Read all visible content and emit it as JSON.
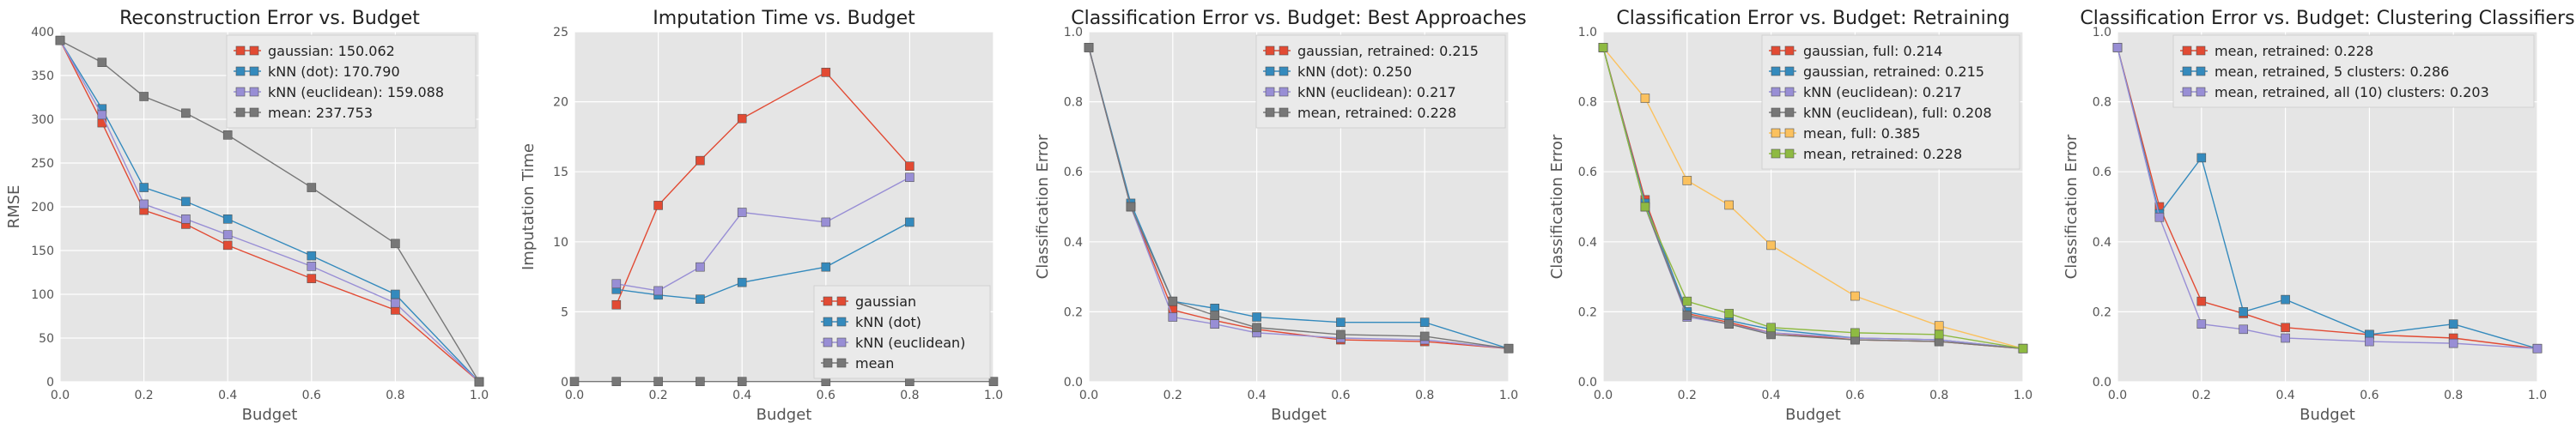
{
  "colors": {
    "background": "#e5e5e5",
    "grid": "#ffffff",
    "legend_bg": "#eaeaea",
    "series": [
      "#e24a33",
      "#348abd",
      "#988ed5",
      "#777777",
      "#fbc15e",
      "#8eba42"
    ]
  },
  "chart_data": [
    {
      "type": "line",
      "title": "Reconstruction Error vs. Budget",
      "xlabel": "Budget",
      "ylabel": "RMSE",
      "xlim": [
        0.0,
        1.0
      ],
      "ylim": [
        0,
        400
      ],
      "xticks": [
        "0.0",
        "0.2",
        "0.4",
        "0.6",
        "0.8",
        "1.0"
      ],
      "yticks": [
        "0",
        "50",
        "100",
        "150",
        "200",
        "250",
        "300",
        "350",
        "400"
      ],
      "legend_position": "top-right",
      "grid": true,
      "series": [
        {
          "name": "gaussian: 150.062",
          "color": "#e24a33",
          "x": [
            0.0,
            0.1,
            0.2,
            0.3,
            0.4,
            0.6,
            0.8,
            1.0
          ],
          "y": [
            390,
            296,
            196,
            180,
            156,
            118,
            82,
            0
          ]
        },
        {
          "name": "kNN (dot): 170.790",
          "color": "#348abd",
          "x": [
            0.0,
            0.1,
            0.2,
            0.3,
            0.4,
            0.6,
            0.8,
            1.0
          ],
          "y": [
            390,
            312,
            222,
            206,
            186,
            144,
            100,
            0
          ]
        },
        {
          "name": "kNN (euclidean): 159.088",
          "color": "#988ed5",
          "x": [
            0.0,
            0.1,
            0.2,
            0.3,
            0.4,
            0.6,
            0.8,
            1.0
          ],
          "y": [
            390,
            305,
            203,
            186,
            168,
            132,
            90,
            0
          ]
        },
        {
          "name": "mean: 237.753",
          "color": "#777777",
          "x": [
            0.0,
            0.1,
            0.2,
            0.3,
            0.4,
            0.6,
            0.8,
            1.0
          ],
          "y": [
            390,
            365,
            326,
            307,
            282,
            222,
            158,
            0
          ]
        }
      ]
    },
    {
      "type": "line",
      "title": "Imputation Time vs. Budget",
      "xlabel": "Budget",
      "ylabel": "Imputation Time",
      "xlim": [
        0.0,
        1.0
      ],
      "ylim": [
        0,
        25
      ],
      "xticks": [
        "0.0",
        "0.2",
        "0.4",
        "0.6",
        "0.8",
        "1.0"
      ],
      "yticks": [
        "0",
        "5",
        "10",
        "15",
        "20",
        "25"
      ],
      "legend_position": "bottom-right",
      "grid": true,
      "series": [
        {
          "name": "gaussian",
          "color": "#e24a33",
          "x": [
            0.1,
            0.2,
            0.3,
            0.4,
            0.6,
            0.8
          ],
          "y": [
            5.5,
            12.6,
            15.8,
            18.8,
            22.1,
            15.4
          ]
        },
        {
          "name": "kNN (dot)",
          "color": "#348abd",
          "x": [
            0.1,
            0.2,
            0.3,
            0.4,
            0.6,
            0.8
          ],
          "y": [
            6.6,
            6.2,
            5.9,
            7.1,
            8.2,
            11.4
          ]
        },
        {
          "name": "kNN (euclidean)",
          "color": "#988ed5",
          "x": [
            0.1,
            0.2,
            0.3,
            0.4,
            0.6,
            0.8
          ],
          "y": [
            7.0,
            6.5,
            8.2,
            12.1,
            11.4,
            14.6
          ]
        },
        {
          "name": "mean",
          "color": "#777777",
          "x": [
            0.0,
            0.1,
            0.2,
            0.3,
            0.4,
            0.6,
            0.8,
            1.0
          ],
          "y": [
            0.02,
            0.02,
            0.02,
            0.02,
            0.02,
            0.02,
            0.02,
            0.02
          ]
        }
      ]
    },
    {
      "type": "line",
      "title": "Classification Error vs. Budget: Best Approaches",
      "xlabel": "Budget",
      "ylabel": "Classification Error",
      "xlim": [
        0.0,
        1.0
      ],
      "ylim": [
        0.0,
        1.0
      ],
      "xticks": [
        "0.0",
        "0.2",
        "0.4",
        "0.6",
        "0.8",
        "1.0"
      ],
      "yticks": [
        "0.0",
        "0.2",
        "0.4",
        "0.6",
        "0.8",
        "1.0"
      ],
      "legend_position": "top-right",
      "grid": true,
      "series": [
        {
          "name": "gaussian, retrained: 0.215",
          "color": "#e24a33",
          "x": [
            0.0,
            0.1,
            0.2,
            0.3,
            0.4,
            0.6,
            0.8,
            1.0
          ],
          "y": [
            0.955,
            0.5,
            0.205,
            0.175,
            0.15,
            0.12,
            0.115,
            0.095
          ]
        },
        {
          "name": "kNN (dot): 0.250",
          "color": "#348abd",
          "x": [
            0.0,
            0.1,
            0.2,
            0.3,
            0.4,
            0.6,
            0.8,
            1.0
          ],
          "y": [
            0.955,
            0.51,
            0.23,
            0.21,
            0.185,
            0.17,
            0.17,
            0.095
          ]
        },
        {
          "name": "kNN (euclidean): 0.217",
          "color": "#988ed5",
          "x": [
            0.0,
            0.1,
            0.2,
            0.3,
            0.4,
            0.6,
            0.8,
            1.0
          ],
          "y": [
            0.955,
            0.5,
            0.185,
            0.165,
            0.14,
            0.125,
            0.12,
            0.095
          ]
        },
        {
          "name": "mean, retrained: 0.228",
          "color": "#777777",
          "x": [
            0.0,
            0.1,
            0.2,
            0.3,
            0.4,
            0.6,
            0.8,
            1.0
          ],
          "y": [
            0.955,
            0.5,
            0.23,
            0.19,
            0.155,
            0.135,
            0.13,
            0.095
          ]
        }
      ]
    },
    {
      "type": "line",
      "title": "Classification Error vs. Budget: Retraining",
      "xlabel": "Budget",
      "ylabel": "Classification Error",
      "xlim": [
        0.0,
        1.0
      ],
      "ylim": [
        0.0,
        1.0
      ],
      "xticks": [
        "0.0",
        "0.2",
        "0.4",
        "0.6",
        "0.8",
        "1.0"
      ],
      "yticks": [
        "0.0",
        "0.2",
        "0.4",
        "0.6",
        "0.8",
        "1.0"
      ],
      "legend_position": "top-right",
      "grid": true,
      "series": [
        {
          "name": "gaussian, full: 0.214",
          "color": "#e24a33",
          "x": [
            0.0,
            0.1,
            0.2,
            0.3,
            0.4,
            0.6,
            0.8,
            1.0
          ],
          "y": [
            0.955,
            0.52,
            0.195,
            0.17,
            0.14,
            0.12,
            0.115,
            0.095
          ]
        },
        {
          "name": "gaussian, retrained: 0.215",
          "color": "#348abd",
          "x": [
            0.0,
            0.1,
            0.2,
            0.3,
            0.4,
            0.6,
            0.8,
            1.0
          ],
          "y": [
            0.955,
            0.51,
            0.2,
            0.175,
            0.15,
            0.125,
            0.12,
            0.095
          ]
        },
        {
          "name": "kNN (euclidean): 0.217",
          "color": "#988ed5",
          "x": [
            0.0,
            0.1,
            0.2,
            0.3,
            0.4,
            0.6,
            0.8,
            1.0
          ],
          "y": [
            0.955,
            0.5,
            0.185,
            0.165,
            0.14,
            0.125,
            0.12,
            0.095
          ]
        },
        {
          "name": "kNN (euclidean), full: 0.208",
          "color": "#777777",
          "x": [
            0.0,
            0.1,
            0.2,
            0.3,
            0.4,
            0.6,
            0.8,
            1.0
          ],
          "y": [
            0.955,
            0.5,
            0.19,
            0.165,
            0.135,
            0.12,
            0.115,
            0.095
          ]
        },
        {
          "name": "mean, full: 0.385",
          "color": "#fbc15e",
          "x": [
            0.0,
            0.1,
            0.2,
            0.3,
            0.4,
            0.6,
            0.8,
            1.0
          ],
          "y": [
            0.955,
            0.81,
            0.575,
            0.505,
            0.39,
            0.245,
            0.16,
            0.095
          ]
        },
        {
          "name": "mean, retrained: 0.228",
          "color": "#8eba42",
          "x": [
            0.0,
            0.1,
            0.2,
            0.3,
            0.4,
            0.6,
            0.8,
            1.0
          ],
          "y": [
            0.955,
            0.5,
            0.23,
            0.195,
            0.155,
            0.14,
            0.135,
            0.095
          ]
        }
      ]
    },
    {
      "type": "line",
      "title": "Classification Error vs. Budget: Clustering Classifiers",
      "xlabel": "Budget",
      "ylabel": "Classification Error",
      "xlim": [
        0.0,
        1.0
      ],
      "ylim": [
        0.0,
        1.0
      ],
      "xticks": [
        "0.0",
        "0.2",
        "0.4",
        "0.6",
        "0.8",
        "1.0"
      ],
      "yticks": [
        "0.0",
        "0.2",
        "0.4",
        "0.6",
        "0.8",
        "1.0"
      ],
      "legend_position": "top-right",
      "grid": true,
      "series": [
        {
          "name": "mean, retrained: 0.228",
          "color": "#e24a33",
          "x": [
            0.0,
            0.1,
            0.2,
            0.3,
            0.4,
            0.6,
            0.8,
            1.0
          ],
          "y": [
            0.955,
            0.5,
            0.23,
            0.195,
            0.155,
            0.135,
            0.125,
            0.095
          ]
        },
        {
          "name": "mean, retrained, 5 clusters: 0.286",
          "color": "#348abd",
          "x": [
            0.0,
            0.1,
            0.2,
            0.3,
            0.4,
            0.6,
            0.8,
            1.0
          ],
          "y": [
            0.955,
            0.48,
            0.64,
            0.2,
            0.235,
            0.135,
            0.165,
            0.095
          ]
        },
        {
          "name": "mean, retrained, all (10) clusters: 0.203",
          "color": "#988ed5",
          "x": [
            0.0,
            0.1,
            0.2,
            0.3,
            0.4,
            0.6,
            0.8,
            1.0
          ],
          "y": [
            0.955,
            0.47,
            0.165,
            0.15,
            0.125,
            0.115,
            0.11,
            0.095
          ]
        }
      ]
    }
  ]
}
